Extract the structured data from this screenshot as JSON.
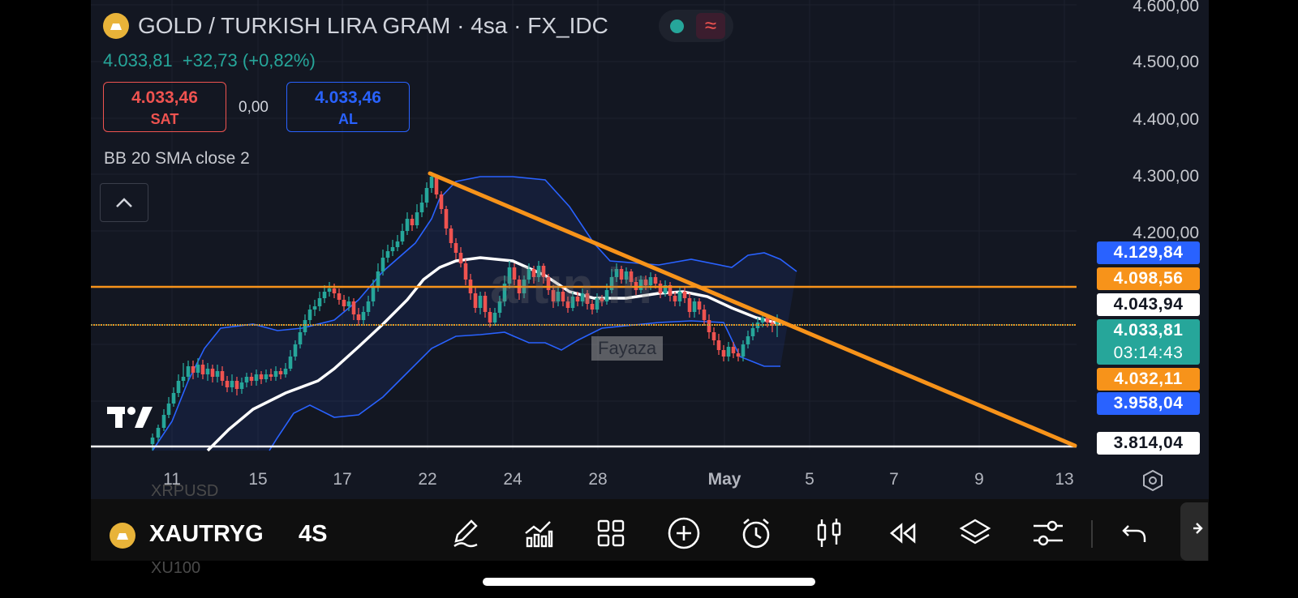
{
  "header": {
    "title": "GOLD / TURKISH LIRA GRAM · 4sa · FX_IDC",
    "last_price": "4.033,81",
    "change": "+32,73 (+0,82%)",
    "status_dot_color": "#26a69a"
  },
  "order_panel": {
    "sell_price": "4.033,46",
    "sell_label": "SAT",
    "spread": "0,00",
    "buy_price": "4.033,46",
    "buy_label": "AL"
  },
  "indicator_label": "BB 20 SMA close 2",
  "y_axis_labels": [
    "4.600,00",
    "4.500,00",
    "4.400,00",
    "4.300,00",
    "4.200,00"
  ],
  "price_tags": [
    {
      "text": "4.129,84",
      "color": "#2962ff"
    },
    {
      "text": "4.098,56",
      "color": "#f7931a"
    },
    {
      "text": "4.043,94",
      "color": "#ffffff",
      "text_color": "#131722"
    },
    {
      "text": "4.033,81",
      "color": "#26a69a"
    },
    {
      "text": "03:14:43",
      "color": "#26a69a"
    },
    {
      "text": "4.032,11",
      "color": "#f7931a"
    },
    {
      "text": "3.958,04",
      "color": "#2962ff"
    },
    {
      "text": "3.814,04",
      "color": "#ffffff",
      "text_color": "#131722"
    }
  ],
  "x_axis_labels": [
    "11",
    "15",
    "17",
    "22",
    "24",
    "28",
    "May",
    "5",
    "7",
    "9",
    "13"
  ],
  "watermark_text": "altın.in",
  "watermark_user": "Fayaza",
  "logo_text": "TV",
  "bottom_bar": {
    "symbol": "XAUTRYG",
    "interval": "4S",
    "ghost_symbol_top": "XRPUSD",
    "ghost_symbol_bottom": "XU100"
  },
  "icons": [
    "pencil-icon",
    "indicators-icon",
    "grid-icon",
    "plus-circle-icon",
    "alarm-icon",
    "candles-icon",
    "replay-icon",
    "layers-icon",
    "settings-sliders-icon",
    "undo-icon"
  ],
  "colors": {
    "up": "#26a69a",
    "down": "#ef5350",
    "band": "#2962ff",
    "basis": "#ffffff",
    "trendline": "#f7931a",
    "background": "#131722"
  },
  "chart_data": {
    "type": "candlestick",
    "symbol": "GOLD / TURKISH LIRA GRAM",
    "interval": "4sa",
    "indicator": "BB 20 SMA close 2",
    "ylim": [
      3814,
      4600
    ],
    "x_labels": [
      "11",
      "15",
      "17",
      "22",
      "24",
      "28",
      "May",
      "5",
      "7",
      "9",
      "13"
    ],
    "horizontal_lines": [
      4043.94,
      4032.11
    ],
    "trendline": {
      "start_label": "22",
      "start_price": 4302,
      "end_label": "13+",
      "end_price": 3814.04
    },
    "last": 4033.81,
    "upper_band_last": 4129.84,
    "lower_band_last": 3958.04
  }
}
